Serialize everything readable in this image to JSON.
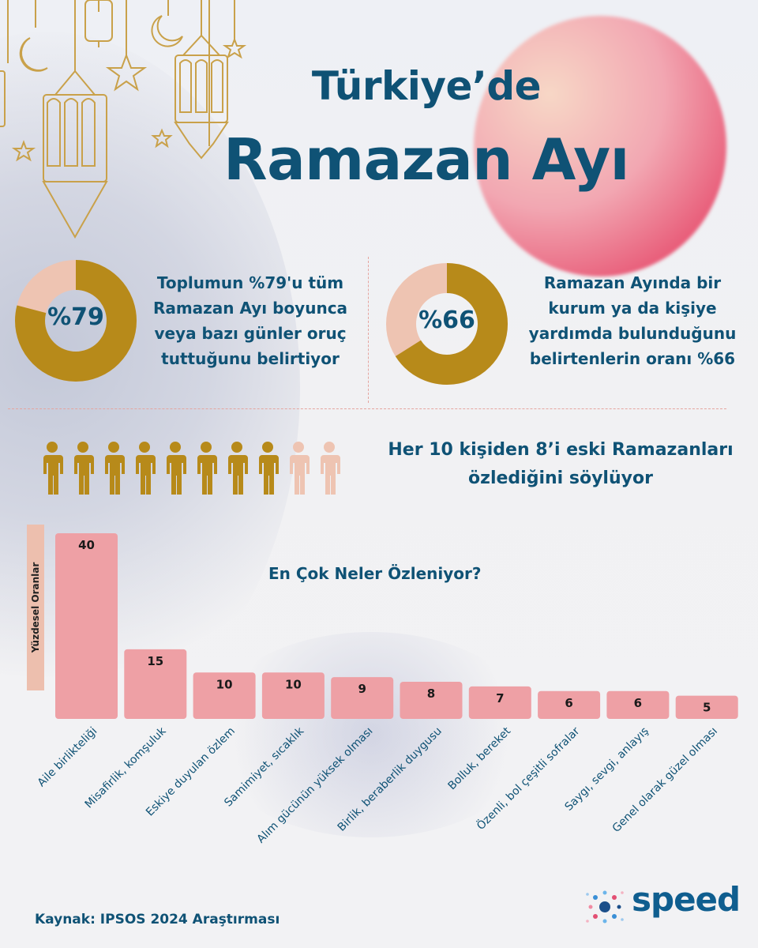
{
  "title": {
    "line1": "Türkiye’de",
    "line2": "Ramazan Ayı"
  },
  "colors": {
    "gold": "#b78a1a",
    "peach": "#eec4b2",
    "navy": "#0f5275",
    "bar": "#eea0a5"
  },
  "stats": [
    {
      "value_label": "%79",
      "fraction": 0.79,
      "lines": [
        "Toplumun %79'u tüm",
        "Ramazan Ayı boyunca",
        "veya bazı günler oruç",
        "tuttuğunu belirtiyor"
      ]
    },
    {
      "value_label": "%66",
      "fraction": 0.66,
      "lines": [
        "Ramazan Ayında bir",
        "kurum ya da kişiye",
        "yardımda bulunduğunu",
        "belirtenlerin oranı %66"
      ]
    }
  ],
  "people": {
    "filled": 8,
    "total": 10,
    "lines": [
      "Her 10 kişiden 8’i eski Ramazanları",
      "özlediğini söylüyor"
    ]
  },
  "chart_data": {
    "type": "bar",
    "title": "En Çok Neler Özleniyor?",
    "ylabel": "Yüzdesel Oranlar",
    "categories": [
      "Aile birlikteliği",
      "Misafirlik, komşuluk",
      "Eskiye duyulan özlem",
      "Samimiyet, sıcaklık",
      "Alım gücünün yüksek olması",
      "Birlik, beraberlik duygusu",
      "Bolluk, bereket",
      "Özenli, bol çeşitli sofralar",
      "Saygı, sevgi, anlayış",
      "Genel olarak güzel olması"
    ],
    "values": [
      40,
      15,
      10,
      10,
      9,
      8,
      7,
      6,
      6,
      5
    ],
    "ylim": [
      0,
      40
    ],
    "grid": false,
    "data_labels": true
  },
  "source": "Kaynak: IPSOS 2024 Araştırması",
  "logo": {
    "text": "speed"
  }
}
